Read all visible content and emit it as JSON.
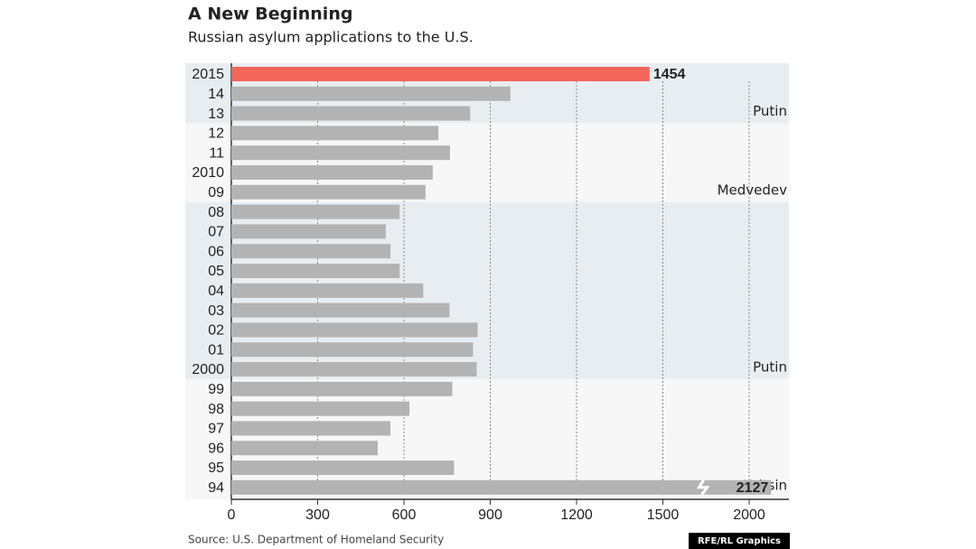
{
  "chart_data": {
    "type": "bar",
    "orientation": "horizontal",
    "title": "A New Beginning",
    "subtitle": "Russian asylum applications to the U.S.",
    "source": "Source: U.S. Department of Homeland Security",
    "credit": "RFE/RL Graphics",
    "categories": [
      "2015",
      "14",
      "13",
      "12",
      "11",
      "2010",
      "09",
      "08",
      "07",
      "06",
      "05",
      "04",
      "03",
      "02",
      "01",
      "2000",
      "99",
      "98",
      "97",
      "96",
      "95",
      "94"
    ],
    "values": [
      1454,
      970,
      830,
      720,
      760,
      700,
      675,
      585,
      537,
      553,
      585,
      667,
      758,
      856,
      840,
      853,
      768,
      619,
      553,
      509,
      774,
      2127
    ],
    "color": "#b3b3b3",
    "highlight": {
      "index": 0,
      "color": "#f4665a"
    },
    "labeled": [
      0,
      21
    ],
    "axis_break": 1500,
    "xlim": [
      0,
      2200
    ],
    "xticks": [
      0,
      300,
      600,
      900,
      1200,
      1500,
      2000
    ],
    "grid": true,
    "eras": [
      {
        "label": "Putin",
        "from": 0,
        "to": 2,
        "color": "#e8edf2"
      },
      {
        "label": "Medvedev",
        "from": 3,
        "to": 6,
        "color": "#f7f7f7"
      },
      {
        "label": "Putin",
        "from": 7,
        "to": 15,
        "color": "#e8edf2"
      },
      {
        "label": "Yeltsin",
        "from": 16,
        "to": 21,
        "color": "#f7f7f7"
      }
    ]
  }
}
